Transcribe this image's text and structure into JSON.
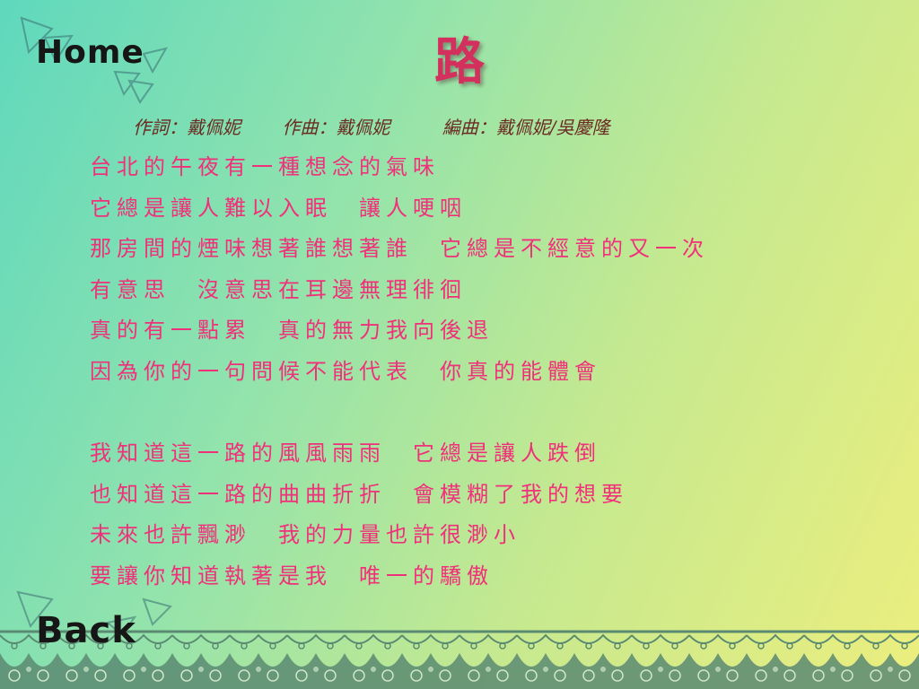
{
  "nav": {
    "home_label": "Home",
    "back_label": "Back"
  },
  "song": {
    "title": "路",
    "credits": {
      "lyricist": "作詞：戴佩妮",
      "composer": "作曲：戴佩妮",
      "arranger": "編曲：戴佩妮/吳慶隆"
    },
    "verse1": [
      "台北的午夜有一種想念的氣味",
      "它總是讓人難以入眠　讓人哽咽",
      "那房間的煙味想著誰想著誰　它總是不經意的又一次",
      "有意思　沒意思在耳邊無理徘徊",
      "真的有一點累　真的無力我向後退",
      "因為你的一句問候不能代表　你真的能體會"
    ],
    "verse2": [
      "我知道這一路的風風雨雨　它總是讓人跌倒",
      "也知道這一路的曲曲折折　會模糊了我的想要",
      "未來也許飄渺　我的力量也許很渺小",
      "要讓你知道執著是我　唯一的驕傲"
    ]
  },
  "colors": {
    "title": "#d4305e",
    "lyrics": "#f0307a",
    "credits": "#6b2a22",
    "nav": "#161616",
    "lace": "#5a8a72"
  },
  "decorations": {
    "top_left": "triangle-outlines",
    "bottom_left": "triangle-outlines",
    "bottom_border": "lace-border"
  }
}
